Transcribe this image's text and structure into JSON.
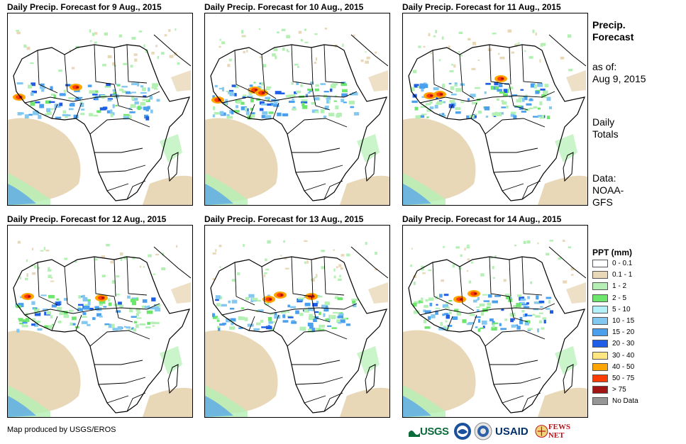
{
  "panels": [
    {
      "title": "Daily Precip. Forecast for 9 Aug., 2015"
    },
    {
      "title": "Daily Precip. Forecast for 10 Aug., 2015"
    },
    {
      "title": "Daily Precip. Forecast for 11 Aug., 2015"
    },
    {
      "title": "Daily Precip. Forecast for 12 Aug., 2015"
    },
    {
      "title": "Daily Precip. Forecast for 13 Aug., 2015"
    },
    {
      "title": "Daily Precip. Forecast for 14 Aug., 2015"
    }
  ],
  "sidebar": {
    "title_line1": "Precip.",
    "title_line2": "Forecast",
    "asof_line1": "as of:",
    "asof_line2": "Aug 9, 2015",
    "totals_line1": "Daily",
    "totals_line2": "Totals",
    "data_line1": "Data:",
    "data_line2": "NOAA-",
    "data_line3": "GFS"
  },
  "legend": {
    "title": "PPT (mm)",
    "items": [
      {
        "label": "0 - 0.1",
        "color": "#ffffff"
      },
      {
        "label": "0.1 - 1",
        "color": "#e8d8b8"
      },
      {
        "label": "1 - 2",
        "color": "#b4f0b4"
      },
      {
        "label": "2 - 5",
        "color": "#6ee66e"
      },
      {
        "label": "5 - 10",
        "color": "#b4f0f8"
      },
      {
        "label": "10 - 15",
        "color": "#82c8f0"
      },
      {
        "label": "15 - 20",
        "color": "#4ba0ee"
      },
      {
        "label": "20 - 30",
        "color": "#1e5ee6"
      },
      {
        "label": "30 - 40",
        "color": "#ffe680"
      },
      {
        "label": "40 - 50",
        "color": "#ffa500"
      },
      {
        "label": "50 - 75",
        "color": "#ff3c00"
      },
      {
        "label": "> 75",
        "color": "#a01414"
      },
      {
        "label": "No Data",
        "color": "#969696"
      }
    ]
  },
  "footer": {
    "credit": "Map produced by USGS/EROS",
    "logos": {
      "usgs": "USGS",
      "usaid": "USAID",
      "fews": "FEWS NET"
    }
  }
}
